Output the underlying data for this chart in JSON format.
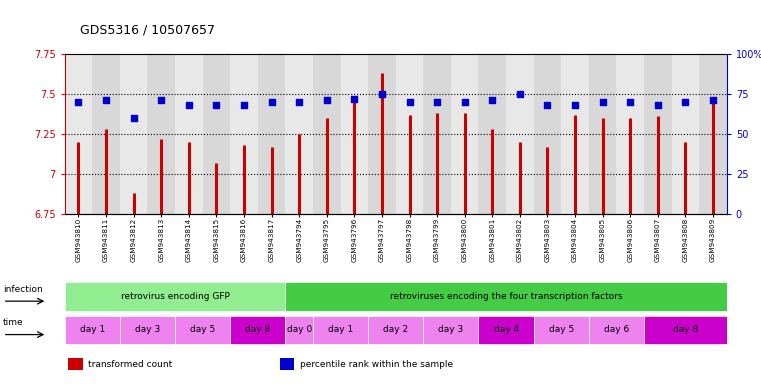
{
  "title": "GDS5316 / 10507657",
  "samples": [
    "GSM943810",
    "GSM943811",
    "GSM943812",
    "GSM943813",
    "GSM943814",
    "GSM943815",
    "GSM943816",
    "GSM943817",
    "GSM943794",
    "GSM943795",
    "GSM943796",
    "GSM943797",
    "GSM943798",
    "GSM943799",
    "GSM943800",
    "GSM943801",
    "GSM943802",
    "GSM943803",
    "GSM943804",
    "GSM943805",
    "GSM943806",
    "GSM943807",
    "GSM943808",
    "GSM943809"
  ],
  "red_values": [
    7.2,
    7.28,
    6.88,
    7.22,
    7.2,
    7.07,
    7.18,
    7.17,
    7.25,
    7.35,
    7.45,
    7.63,
    7.37,
    7.38,
    7.38,
    7.28,
    7.2,
    7.17,
    7.37,
    7.35,
    7.35,
    7.36,
    7.2,
    7.45
  ],
  "blue_values": [
    70,
    71,
    60,
    71,
    68,
    68,
    68,
    70,
    70,
    71,
    72,
    75,
    70,
    70,
    70,
    71,
    75,
    68,
    68,
    70,
    70,
    68,
    70,
    71
  ],
  "ylim_left": [
    6.75,
    7.75
  ],
  "ylim_right": [
    0,
    100
  ],
  "yticks_left": [
    6.75,
    7.0,
    7.25,
    7.5,
    7.75
  ],
  "yticks_right": [
    0,
    25,
    50,
    75,
    100
  ],
  "ytick_labels_left": [
    "6.75",
    "7",
    "7.25",
    "7.5",
    "7.75"
  ],
  "ytick_labels_right": [
    "0",
    "25",
    "50",
    "75",
    "100%"
  ],
  "hlines": [
    7.0,
    7.25,
    7.5
  ],
  "infection_groups": [
    {
      "label": "retrovirus encoding GFP",
      "start": 0,
      "end": 7,
      "color": "#90EE90"
    },
    {
      "label": "retroviruses encoding the four transcription factors",
      "start": 8,
      "end": 23,
      "color": "#44CC44"
    }
  ],
  "time_groups": [
    {
      "label": "day 1",
      "start": 0,
      "end": 1,
      "color": "#EE82EE"
    },
    {
      "label": "day 3",
      "start": 2,
      "end": 3,
      "color": "#EE82EE"
    },
    {
      "label": "day 5",
      "start": 4,
      "end": 5,
      "color": "#EE82EE"
    },
    {
      "label": "day 8",
      "start": 6,
      "end": 7,
      "color": "#CC00CC"
    },
    {
      "label": "day 0",
      "start": 8,
      "end": 8,
      "color": "#EE82EE"
    },
    {
      "label": "day 1",
      "start": 9,
      "end": 10,
      "color": "#EE82EE"
    },
    {
      "label": "day 2",
      "start": 11,
      "end": 12,
      "color": "#EE82EE"
    },
    {
      "label": "day 3",
      "start": 13,
      "end": 14,
      "color": "#EE82EE"
    },
    {
      "label": "day 4",
      "start": 15,
      "end": 16,
      "color": "#CC00CC"
    },
    {
      "label": "day 5",
      "start": 17,
      "end": 18,
      "color": "#EE82EE"
    },
    {
      "label": "day 6",
      "start": 19,
      "end": 20,
      "color": "#EE82EE"
    },
    {
      "label": "day 8",
      "start": 21,
      "end": 23,
      "color": "#CC00CC"
    }
  ],
  "bar_color": "#CC0000",
  "dot_color": "#0000CC",
  "bg_color": "#FFFFFF",
  "plot_bg": "#EEEEEE",
  "stripe_even": "#E8E8E8",
  "stripe_odd": "#D8D8D8",
  "left_axis_color": "#CC0000",
  "right_axis_color": "#0000CC",
  "legend_items": [
    {
      "color": "#CC0000",
      "label": "transformed count"
    },
    {
      "color": "#0000CC",
      "label": "percentile rank within the sample"
    }
  ]
}
